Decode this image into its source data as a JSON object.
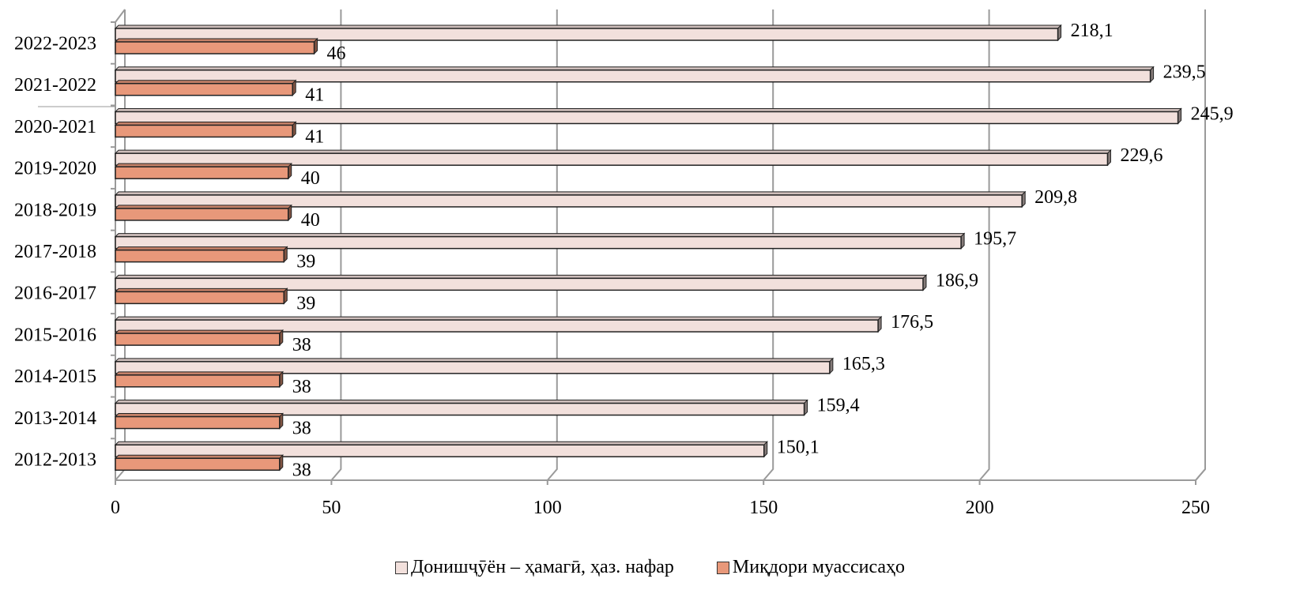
{
  "chart_data": {
    "type": "bar",
    "orientation": "horizontal",
    "categories": [
      "2012-2013",
      "2013-2014",
      "2014-2015",
      "2015-2016",
      "2016-2017",
      "2017-2018",
      "2018-2019",
      "2019-2020",
      "2020-2021",
      "2021-2022",
      "2022-2023"
    ],
    "series": [
      {
        "name": "Донишҷӯён – ҳамагӣ, ҳаз. нафар",
        "values": [
          150.1,
          159.4,
          165.3,
          176.5,
          186.9,
          195.7,
          209.8,
          229.6,
          245.9,
          239.5,
          218.1
        ],
        "labels": [
          "150,1",
          "159,4",
          "165,3",
          "176,5",
          "186,9",
          "195,7",
          "209,8",
          "229,6",
          "245,9",
          "239,5",
          "218,1"
        ],
        "color": "#f2e0dc"
      },
      {
        "name": "Миқдори муассисаҳо",
        "values": [
          38,
          38,
          38,
          38,
          39,
          39,
          40,
          40,
          41,
          41,
          46
        ],
        "labels": [
          "38",
          "38",
          "38",
          "38",
          "39",
          "39",
          "40",
          "40",
          "41",
          "41",
          "46"
        ],
        "color": "#e8987a"
      }
    ],
    "xlim": [
      0,
      250
    ],
    "xticks": [
      "0",
      "50",
      "100",
      "150",
      "200",
      "250"
    ],
    "grid": true,
    "legend_position": "bottom"
  }
}
